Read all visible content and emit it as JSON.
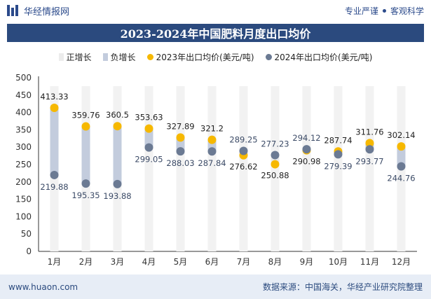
{
  "header": {
    "brand": "华经情报网",
    "tag1": "专业严谨",
    "tag2": "客观科学"
  },
  "footer": {
    "website": "www.huaon.com",
    "source": "数据来源：中国海关，华经产业研究院整理"
  },
  "colors": {
    "positive": "#f5f5f5",
    "negative": "#c3ccdd",
    "series2023": "#f6b800",
    "series2024": "#6b7a93",
    "title_bg": "#2b4a7e"
  },
  "chart_data": {
    "type": "line",
    "title": "2023-2024年中国肥料月度出口均价",
    "categories": [
      "1月",
      "2月",
      "3月",
      "4月",
      "5月",
      "6月",
      "7月",
      "8月",
      "9月",
      "10月",
      "11月",
      "12月"
    ],
    "ylim": [
      0,
      500
    ],
    "yticks": [
      0,
      50,
      100,
      150,
      200,
      250,
      300,
      350,
      400,
      450,
      500
    ],
    "legend": [
      "正增长",
      "负增长",
      "2023年出口均价(美元/吨)",
      "2024年出口均价(美元/吨)"
    ],
    "series": [
      {
        "name": "2023年出口均价(美元/吨)",
        "values": [
          413.33,
          359.76,
          360.5,
          353.63,
          327.89,
          321.2,
          276.62,
          250.88,
          290.98,
          287.74,
          311.76,
          302.14
        ]
      },
      {
        "name": "2024年出口均价(美元/吨)",
        "values": [
          219.88,
          195.35,
          193.88,
          299.05,
          288.03,
          287.84,
          289.25,
          277.23,
          294.12,
          279.39,
          293.77,
          244.76
        ]
      }
    ],
    "labels_2023": [
      "413.33",
      "359.76",
      "360.5",
      "353.63",
      "327.89",
      "321.2",
      "276.62",
      "250.88",
      "290.98",
      "287.74",
      "311.76",
      "302.14"
    ],
    "labels_2024": [
      "219.88",
      "195.35",
      "193.88",
      "299.05",
      "288.03",
      "287.84",
      "289.25",
      "277.23",
      "294.12",
      "279.39",
      "293.77",
      "244.76"
    ]
  }
}
